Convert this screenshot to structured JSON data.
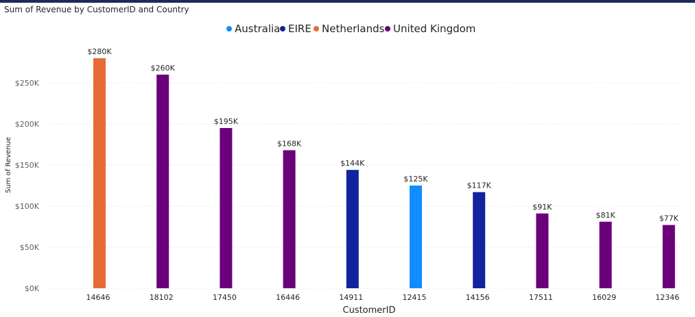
{
  "chart_data": {
    "type": "bar",
    "title": "Sum of Revenue by CustomerID and Country",
    "xlabel": "CustomerID",
    "ylabel": "Sum of Revenue",
    "ylim": [
      0,
      280000
    ],
    "yticks": [
      0,
      50000,
      100000,
      150000,
      200000,
      250000
    ],
    "ytick_labels": [
      "$0K",
      "$50K",
      "$100K",
      "$150K",
      "$200K",
      "$250K"
    ],
    "grid": true,
    "legend_position": "top-center",
    "categories": [
      "14646",
      "18102",
      "17450",
      "16446",
      "14911",
      "12415",
      "14156",
      "17511",
      "16029",
      "12346"
    ],
    "series": [
      {
        "name": "Australia",
        "color": "#118DFF",
        "values": [
          null,
          null,
          null,
          null,
          null,
          125000,
          null,
          null,
          null,
          null
        ]
      },
      {
        "name": "EIRE",
        "color": "#12239E",
        "values": [
          null,
          null,
          null,
          null,
          144000,
          null,
          117000,
          null,
          null,
          null
        ]
      },
      {
        "name": "Netherlands",
        "color": "#E66C37",
        "values": [
          280000,
          null,
          null,
          null,
          null,
          null,
          null,
          null,
          null,
          null
        ]
      },
      {
        "name": "United Kingdom",
        "color": "#6B007B",
        "values": [
          null,
          260000,
          195000,
          168000,
          null,
          null,
          null,
          91000,
          81000,
          77000
        ]
      }
    ],
    "data_labels": [
      "$280K",
      "$260K",
      "$195K",
      "$168K",
      "$144K",
      "$125K",
      "$117K",
      "$91K",
      "$81K",
      "$77K"
    ]
  }
}
